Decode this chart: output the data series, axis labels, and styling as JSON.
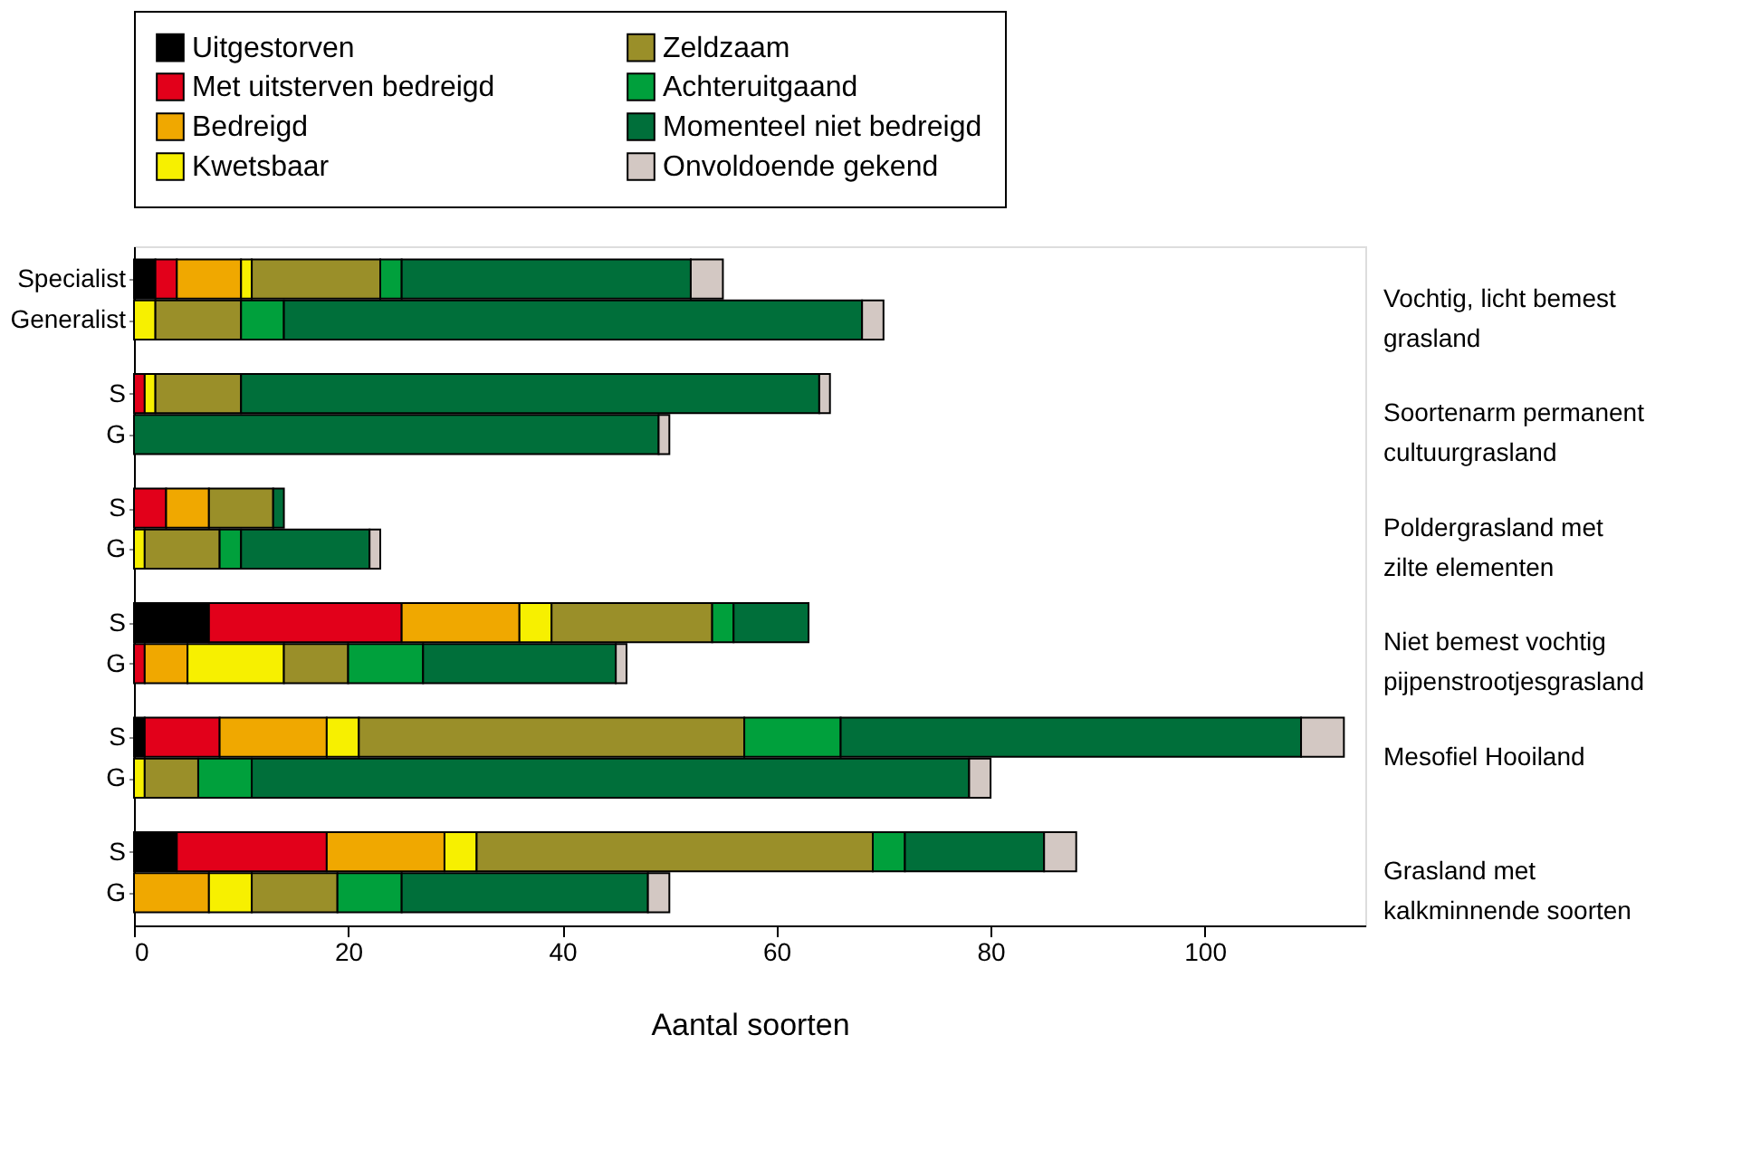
{
  "chart_data": {
    "type": "bar",
    "orientation": "horizontal",
    "stacked": true,
    "xlabel": "Aantal soorten",
    "legend": "top",
    "categories": [
      "Specialist",
      "Generalist",
      "S",
      "G",
      "S",
      "G",
      "S",
      "G",
      "S",
      "G",
      "S",
      "G"
    ],
    "annotations": [
      "Vochtig, licht bemest grasland",
      "Soortenarm permanent cultuurgrasland",
      "Poldergrasland met zilte elementen",
      "Niet bemest vochtig pijpenstrootjesgrasland",
      "Mesofiel Hooiland",
      "Grasland met kalkminnende soorten"
    ],
    "xlim": [
      0,
      115
    ],
    "xticks": [
      0,
      20,
      40,
      60,
      80,
      100
    ],
    "series": [
      {
        "name": "Uitgestorven",
        "color": "#000000",
        "values": [
          2,
          0,
          0,
          0,
          0,
          0,
          7,
          0,
          1,
          0,
          4,
          0
        ]
      },
      {
        "name": "Met uitsterven bedreigd",
        "color": "#e2001a",
        "values": [
          2,
          0,
          1,
          0,
          3,
          0,
          18,
          1,
          7,
          0,
          14,
          0
        ]
      },
      {
        "name": "Bedreigd",
        "color": "#f0a800",
        "values": [
          6,
          0,
          0,
          0,
          4,
          0,
          11,
          4,
          10,
          0,
          11,
          7
        ]
      },
      {
        "name": "Kwetsbaar",
        "color": "#f7f000",
        "values": [
          1,
          2,
          1,
          0,
          0,
          1,
          3,
          9,
          3,
          1,
          3,
          4
        ]
      },
      {
        "name": "Zeldzaam",
        "color": "#9a8f29",
        "values": [
          12,
          8,
          8,
          0,
          6,
          7,
          15,
          6,
          36,
          5,
          37,
          8
        ]
      },
      {
        "name": "Achteruitgaand",
        "color": "#00a03c",
        "values": [
          2,
          4,
          0,
          0,
          0,
          2,
          2,
          7,
          9,
          5,
          3,
          6
        ]
      },
      {
        "name": "Momenteel niet bedreigd",
        "color": "#006f3a",
        "values": [
          27,
          54,
          54,
          49,
          1,
          12,
          7,
          18,
          43,
          67,
          13,
          23
        ]
      },
      {
        "name": "Onvoldoende gekend",
        "color": "#d3c8c3",
        "values": [
          3,
          2,
          1,
          1,
          0,
          1,
          0,
          1,
          4,
          2,
          3,
          2
        ]
      }
    ]
  }
}
